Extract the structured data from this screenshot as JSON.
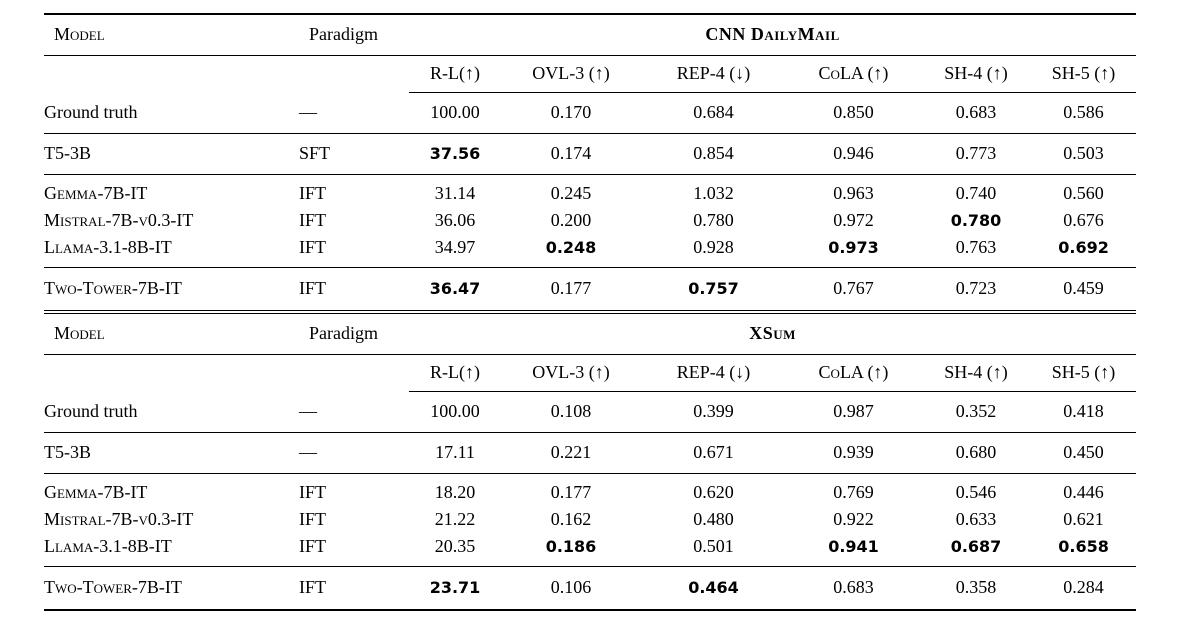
{
  "columns": {
    "model": "Model",
    "paradigm": "Paradigm",
    "metrics": [
      "R-L(↑)",
      "OVL-3 (↑)",
      "REP-4 (↓)",
      "CoLA (↑)",
      "SH-4 (↑)",
      "SH-5 (↑)"
    ]
  },
  "tables": [
    {
      "title": "CNN DailyMail",
      "rows": [
        {
          "model": "Ground truth",
          "smallcaps": false,
          "paradigm": "—",
          "group": "gt",
          "values": [
            "100.00",
            "0.170",
            "0.684",
            "0.850",
            "0.683",
            "0.586"
          ],
          "bold": [
            false,
            false,
            false,
            false,
            false,
            false
          ]
        },
        {
          "model": "T5-3B",
          "smallcaps": false,
          "paradigm": "SFT",
          "group": "sft",
          "values": [
            "37.56",
            "0.174",
            "0.854",
            "0.946",
            "0.773",
            "0.503"
          ],
          "bold": [
            true,
            false,
            false,
            false,
            false,
            false
          ]
        },
        {
          "model": "Gemma-7B-IT",
          "smallcaps": true,
          "paradigm": "IFT",
          "group": "ift",
          "values": [
            "31.14",
            "0.245",
            "1.032",
            "0.963",
            "0.740",
            "0.560"
          ],
          "bold": [
            false,
            false,
            false,
            false,
            false,
            false
          ]
        },
        {
          "model": "Mistral-7B-v0.3-IT",
          "smallcaps": true,
          "paradigm": "IFT",
          "group": "ift",
          "values": [
            "36.06",
            "0.200",
            "0.780",
            "0.972",
            "0.780",
            "0.676"
          ],
          "bold": [
            false,
            false,
            false,
            false,
            true,
            false
          ]
        },
        {
          "model": "Llama-3.1-8B-IT",
          "smallcaps": true,
          "paradigm": "IFT",
          "group": "ift",
          "values": [
            "34.97",
            "0.248",
            "0.928",
            "0.973",
            "0.763",
            "0.692"
          ],
          "bold": [
            false,
            true,
            false,
            true,
            false,
            true
          ]
        },
        {
          "model": "Two-Tower-7B-IT",
          "smallcaps": true,
          "paradigm": "IFT",
          "group": "ours",
          "values": [
            "36.47",
            "0.177",
            "0.757",
            "0.767",
            "0.723",
            "0.459"
          ],
          "bold": [
            true,
            false,
            true,
            false,
            false,
            false
          ]
        }
      ]
    },
    {
      "title": "XSum",
      "rows": [
        {
          "model": "Ground truth",
          "smallcaps": false,
          "paradigm": "—",
          "group": "gt",
          "values": [
            "100.00",
            "0.108",
            "0.399",
            "0.987",
            "0.352",
            "0.418"
          ],
          "bold": [
            false,
            false,
            false,
            false,
            false,
            false
          ]
        },
        {
          "model": "T5-3B",
          "smallcaps": false,
          "paradigm": "—",
          "group": "sft",
          "values": [
            "17.11",
            "0.221",
            "0.671",
            "0.939",
            "0.680",
            "0.450"
          ],
          "bold": [
            false,
            false,
            false,
            false,
            false,
            false
          ]
        },
        {
          "model": "Gemma-7B-IT",
          "smallcaps": true,
          "paradigm": "IFT",
          "group": "ift",
          "values": [
            "18.20",
            "0.177",
            "0.620",
            "0.769",
            "0.546",
            "0.446"
          ],
          "bold": [
            false,
            false,
            false,
            false,
            false,
            false
          ]
        },
        {
          "model": "Mistral-7B-v0.3-IT",
          "smallcaps": true,
          "paradigm": "IFT",
          "group": "ift",
          "values": [
            "21.22",
            "0.162",
            "0.480",
            "0.922",
            "0.633",
            "0.621"
          ],
          "bold": [
            false,
            false,
            false,
            false,
            false,
            false
          ]
        },
        {
          "model": "Llama-3.1-8B-IT",
          "smallcaps": true,
          "paradigm": "IFT",
          "group": "ift",
          "values": [
            "20.35",
            "0.186",
            "0.501",
            "0.941",
            "0.687",
            "0.658"
          ],
          "bold": [
            false,
            true,
            false,
            true,
            true,
            true
          ]
        },
        {
          "model": "Two-Tower-7B-IT",
          "smallcaps": true,
          "paradigm": "IFT",
          "group": "ours",
          "values": [
            "23.71",
            "0.106",
            "0.464",
            "0.683",
            "0.358",
            "0.284"
          ],
          "bold": [
            true,
            false,
            true,
            false,
            false,
            false
          ]
        }
      ]
    }
  ]
}
